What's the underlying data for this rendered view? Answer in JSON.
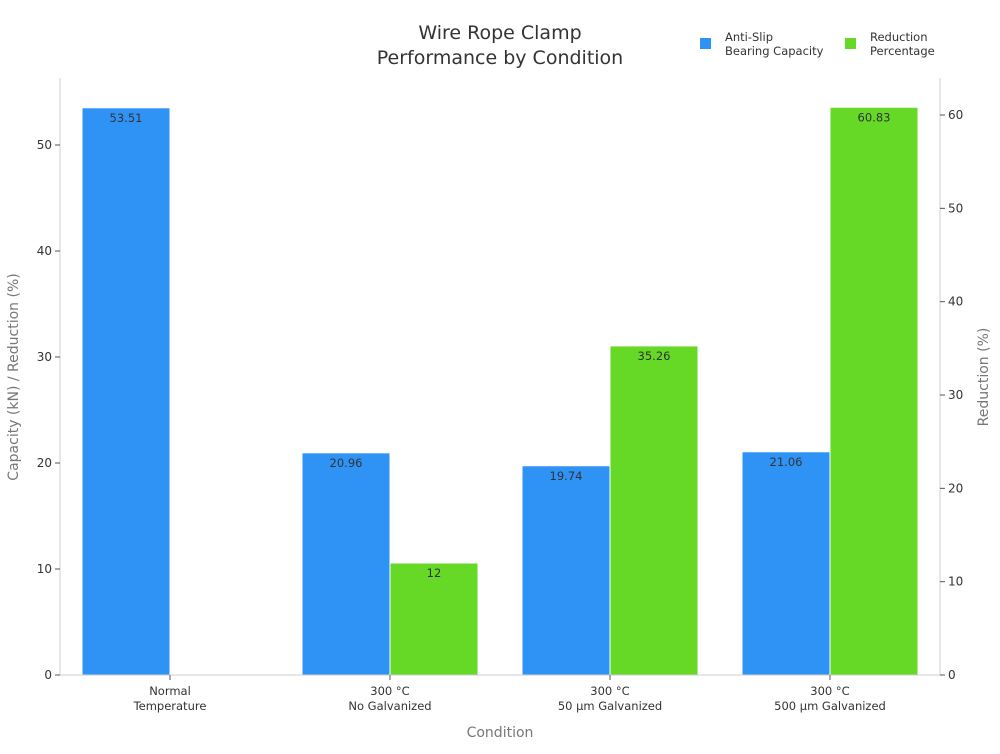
{
  "chart_data": {
    "type": "bar",
    "title": "Wire Rope Clamp\nPerformance by Condition",
    "xlabel": "Condition",
    "ylabel": "Capacity (kN) / Reduction (%)",
    "ylabel_right": "Reduction (%)",
    "categories": [
      "Normal\nTemperature",
      "300 °C\nNo Galvanized",
      "300 °C\n50 µm Galvanized",
      "300 °C\n500 µm Galvanized"
    ],
    "series": [
      {
        "name": "Anti-Slip\nBearing Capacity",
        "axis": "left",
        "color": "#2f93f5",
        "values": [
          53.51,
          20.96,
          19.74,
          21.06
        ],
        "labels": [
          "53.51",
          "20.96",
          "19.74",
          "21.06"
        ]
      },
      {
        "name": "Reduction\nPercentage",
        "axis": "right",
        "color": "#66d926",
        "values": [
          null,
          12,
          35.26,
          60.83
        ],
        "labels": [
          "",
          "12",
          "35.26",
          "60.83"
        ]
      }
    ],
    "ylim": [
      0,
      56
    ],
    "ylim_right": [
      0,
      64
    ],
    "yticks": [
      0,
      10,
      20,
      30,
      40,
      50
    ],
    "yticks_right": [
      0,
      10,
      20,
      30,
      40,
      50,
      60
    ],
    "grid": false,
    "legend": "top-right"
  }
}
